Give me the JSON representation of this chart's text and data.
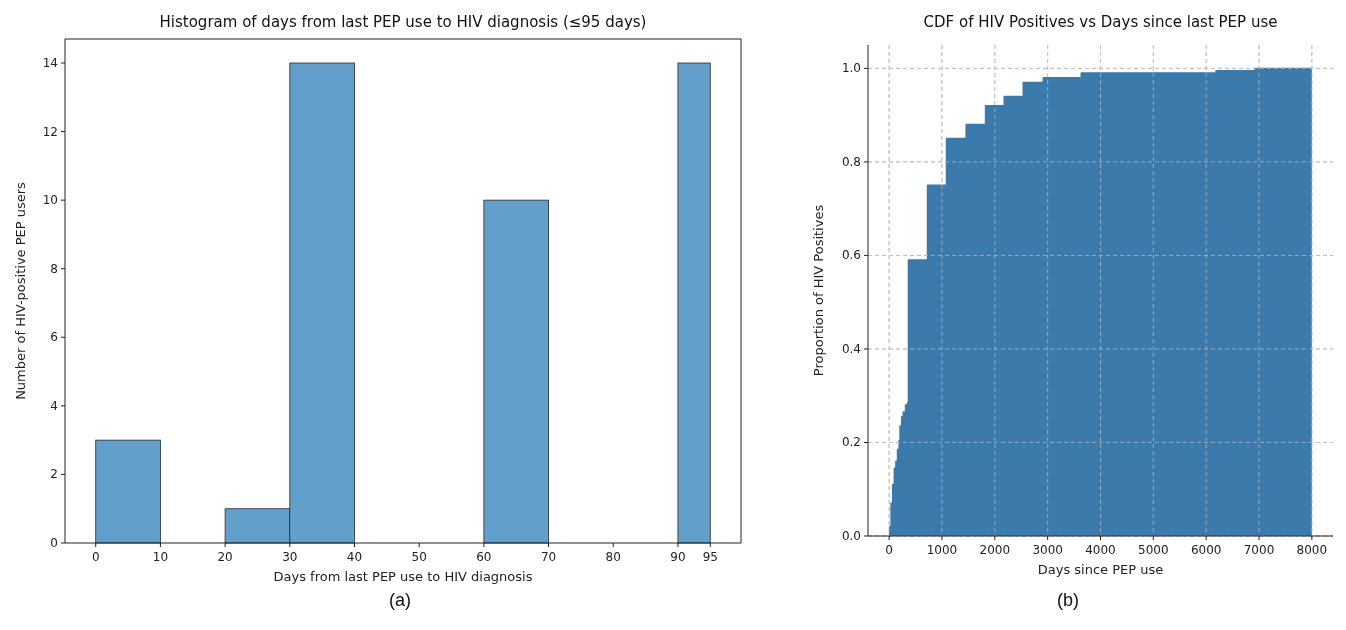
{
  "chart_data": [
    {
      "type": "histogram",
      "title": "Histogram of days from last PEP use to HIV diagnosis (≤95 days)",
      "xlabel": "Days from last PEP use to HIV diagnosis",
      "ylabel": "Number of HIV-positive PEP users",
      "bins": [
        0,
        10,
        20,
        30,
        40,
        60,
        70,
        90,
        95
      ],
      "values": [
        3,
        0,
        1,
        14,
        0,
        10,
        0,
        14
      ],
      "color": "#62a0cb",
      "xlim": [
        -4.75,
        99.75
      ],
      "xticks": [
        0,
        10,
        20,
        30,
        40,
        50,
        60,
        70,
        80,
        90,
        95
      ],
      "ylim": [
        0,
        14.7
      ],
      "yticks": [
        0,
        2,
        4,
        6,
        8,
        10,
        12,
        14
      ],
      "grid": false,
      "annotations": [
        "(a)"
      ]
    },
    {
      "type": "step",
      "title": "CDF of HIV Positives vs Days since last PEP use",
      "xlabel": "Days since PEP use",
      "ylabel": "Proportion of HIV Positives",
      "x": [
        0,
        12,
        37,
        67,
        98,
        128,
        159,
        189,
        207,
        238,
        268,
        311,
        348,
        366,
        726,
        1086,
        1458,
        1825,
        2178,
        2538,
        2917,
        3636,
        6187,
        6926,
        8000
      ],
      "series": [
        {
          "color": "#3b7aab",
          "values": [
            0,
            0.02,
            0.07,
            0.11,
            0.145,
            0.16,
            0.185,
            0.205,
            0.235,
            0.255,
            0.265,
            0.28,
            0.285,
            0.59,
            0.75,
            0.85,
            0.88,
            0.92,
            0.94,
            0.97,
            0.98,
            0.99,
            0.995,
            1.0,
            1.0
          ]
        }
      ],
      "xlim": [
        -400,
        8400
      ],
      "xticks": [
        0,
        1000,
        2000,
        3000,
        4000,
        5000,
        6000,
        7000,
        8000
      ],
      "ylim": [
        0,
        1.05
      ],
      "yticks": [
        {
          "value": 0,
          "label": "0.0"
        },
        {
          "value": 0.2,
          "label": "0.2"
        },
        {
          "value": 0.4,
          "label": "0.4"
        },
        {
          "value": 0.6,
          "label": "0.6"
        },
        {
          "value": 0.8,
          "label": "0.8"
        },
        {
          "value": 1,
          "label": "1.0"
        }
      ],
      "grid": true,
      "annotations": [
        "(b)"
      ]
    }
  ]
}
